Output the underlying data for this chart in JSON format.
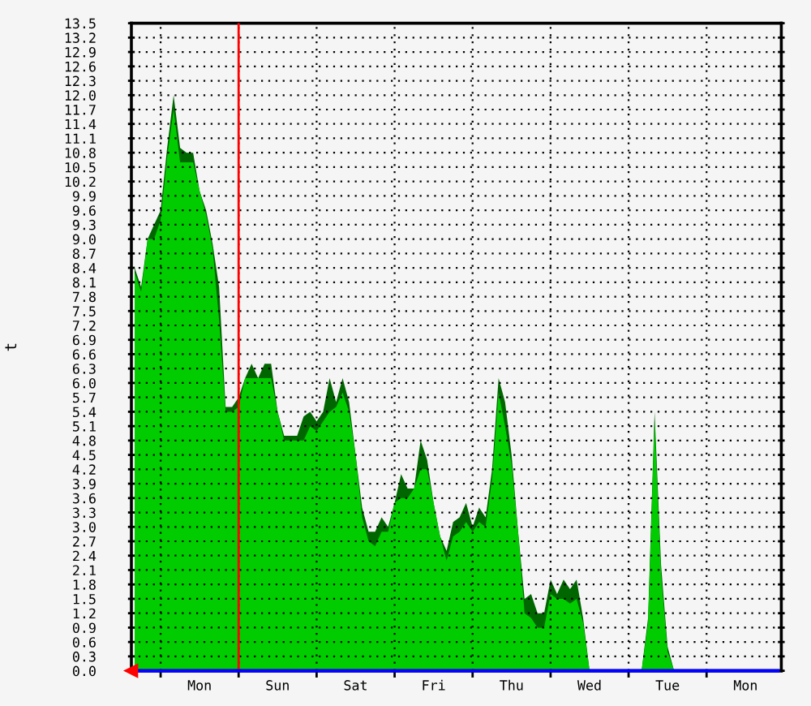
{
  "chart_data": {
    "type": "area",
    "ylabel": "t",
    "categories": [
      null,
      null,
      null,
      null,
      null,
      null,
      null,
      null,
      null,
      null,
      "Mon",
      null,
      null,
      null,
      null,
      null,
      null,
      null,
      null,
      null,
      null,
      null,
      "Sun",
      null,
      null,
      null,
      null,
      null,
      null,
      null,
      null,
      null,
      null,
      null,
      "Sat",
      null,
      null,
      null,
      null,
      null,
      null,
      null,
      null,
      null,
      null,
      null,
      "Fri",
      null,
      null,
      null,
      null,
      null,
      null,
      null,
      null,
      null,
      null,
      null,
      "Thu",
      null,
      null,
      null,
      null,
      null,
      null,
      null,
      null,
      null,
      null,
      null,
      "Wed",
      null,
      null,
      null,
      null,
      null,
      null,
      null,
      null,
      null,
      null,
      null,
      "Tue",
      null,
      null,
      null,
      null,
      null,
      null,
      null,
      null,
      null,
      null,
      null,
      "Mon",
      null,
      null,
      null,
      null,
      null
    ],
    "series": [
      {
        "color": "#006600",
        "values": [
          8.4,
          8.0,
          9.0,
          9.3,
          9.6,
          10.9,
          12.0,
          10.9,
          10.8,
          10.8,
          10.0,
          9.6,
          8.9,
          8.0,
          5.5,
          5.5,
          5.7,
          6.1,
          6.4,
          6.1,
          6.4,
          6.4,
          5.4,
          4.9,
          4.9,
          4.9,
          5.3,
          5.4,
          5.2,
          5.4,
          6.1,
          5.6,
          6.1,
          5.6,
          4.5,
          3.4,
          2.9,
          2.9,
          3.2,
          3.0,
          3.5,
          4.1,
          3.8,
          3.8,
          4.8,
          4.4,
          3.5,
          2.8,
          2.5,
          3.1,
          3.2,
          3.5,
          3.0,
          3.4,
          3.2,
          4.2,
          6.1,
          5.6,
          4.5,
          2.9,
          1.5,
          1.6,
          1.2,
          1.2,
          1.9,
          1.6,
          1.9,
          1.7,
          1.9,
          1.1,
          0,
          0,
          0,
          0,
          0,
          0,
          0,
          0,
          0,
          1.1,
          5.4,
          2.2,
          0.5,
          0,
          0,
          0,
          0,
          0,
          0,
          0,
          0,
          0,
          0,
          0,
          0,
          0,
          0,
          0,
          0,
          0
        ]
      },
      {
        "color": "#00cc00",
        "values": [
          8.3,
          7.9,
          9.0,
          9.0,
          9.4,
          10.7,
          11.7,
          10.6,
          10.6,
          10.6,
          10.0,
          9.5,
          8.8,
          7.3,
          5.4,
          5.4,
          5.5,
          6.1,
          6.1,
          6.1,
          6.1,
          6.1,
          5.4,
          4.8,
          4.8,
          4.8,
          4.8,
          5.1,
          5.0,
          5.2,
          5.4,
          5.5,
          5.8,
          5.4,
          4.5,
          3.2,
          2.7,
          2.6,
          2.9,
          2.9,
          3.5,
          3.6,
          3.6,
          3.8,
          4.2,
          4.2,
          3.5,
          2.8,
          2.3,
          2.8,
          2.9,
          3.1,
          2.9,
          3.1,
          3.0,
          4.0,
          5.8,
          5.1,
          4.3,
          2.9,
          1.2,
          1.1,
          0.9,
          0.9,
          1.6,
          1.5,
          1.5,
          1.4,
          1.5,
          1.0,
          0,
          0,
          0,
          0,
          0,
          0,
          0,
          0,
          0,
          1.0,
          5.2,
          2.0,
          0.4,
          0,
          0,
          0,
          0,
          0,
          0,
          0,
          0,
          0,
          0,
          0,
          0,
          0,
          0,
          0,
          0,
          0
        ]
      },
      {
        "type": "line",
        "color": "#0000ff",
        "values": [
          0,
          0,
          0,
          0,
          0,
          0,
          0,
          0,
          0,
          0,
          0,
          0,
          0,
          0,
          0,
          0,
          0,
          0,
          0,
          0,
          0,
          0,
          0,
          0,
          0,
          0,
          0,
          0,
          0,
          0,
          0,
          0,
          0,
          0,
          0,
          0,
          0,
          0,
          0,
          0,
          0,
          0,
          0,
          0,
          0,
          0,
          0,
          0,
          0,
          0,
          0,
          0,
          0,
          0,
          0,
          0,
          0,
          0,
          0,
          0,
          0,
          0,
          0,
          0,
          0,
          0,
          0,
          0,
          0,
          0,
          0,
          0,
          0,
          0,
          0,
          0,
          0,
          0,
          0,
          0,
          0,
          0,
          0,
          0,
          0,
          0,
          0,
          0,
          0,
          0,
          0,
          0,
          0,
          0,
          0,
          0,
          0,
          0,
          0,
          0
        ]
      }
    ],
    "ylim": [
      0,
      13.5
    ],
    "yticks": [
      {
        "value": 0,
        "label": "0.0"
      },
      0.3,
      0.6,
      0.9,
      1.2,
      1.5,
      1.8,
      2.1,
      2.4,
      2.7,
      {
        "value": 3,
        "label": "3.0"
      },
      3.3,
      3.6,
      3.9,
      4.2,
      4.5,
      4.8,
      5.1,
      5.4,
      5.7,
      {
        "value": 6,
        "label": "6.0"
      },
      6.3,
      6.6,
      6.9,
      7.2,
      7.5,
      7.8,
      8.1,
      8.4,
      8.7,
      {
        "value": 9,
        "label": "9.0"
      },
      9.3,
      9.6,
      9.9,
      10.2,
      10.5,
      10.8,
      11.1,
      11.4,
      11.7,
      {
        "value": 12,
        "label": "12.0"
      },
      12.3,
      12.6,
      12.9,
      13.2,
      13.5
    ],
    "grid": true
  }
}
